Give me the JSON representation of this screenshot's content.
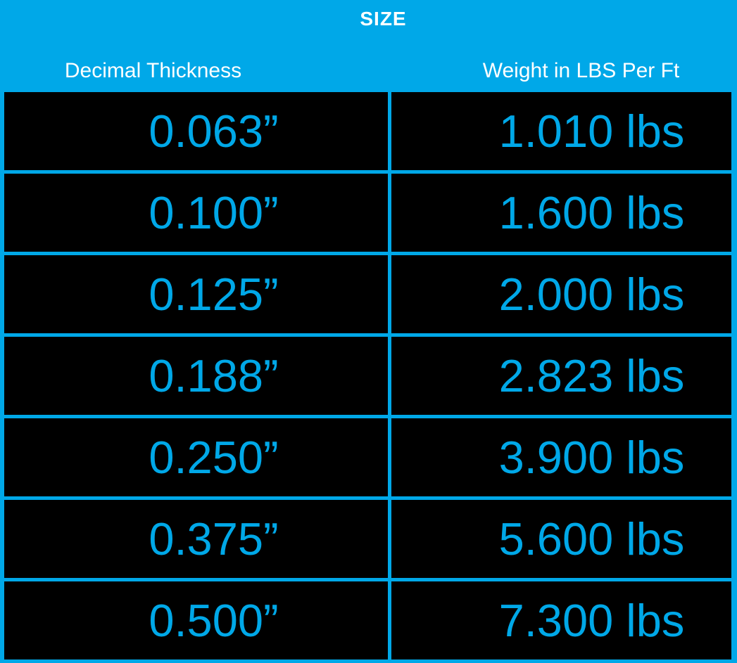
{
  "title": "SIZE",
  "columns": {
    "thickness_label": "Decimal Thickness",
    "weight_label": "Weight in LBS Per Ft"
  },
  "table": {
    "rows": [
      {
        "thickness": "0.063”",
        "weight": "1.010 lbs"
      },
      {
        "thickness": "0.100”",
        "weight": "1.600 lbs"
      },
      {
        "thickness": "0.125”",
        "weight": "2.000 lbs"
      },
      {
        "thickness": "0.188”",
        "weight": "2.823 lbs"
      },
      {
        "thickness": "0.250”",
        "weight": "3.900 lbs"
      },
      {
        "thickness": "0.375”",
        "weight": "5.600 lbs"
      },
      {
        "thickness": "0.500”",
        "weight": "7.300 lbs"
      }
    ]
  },
  "chart_data": {
    "type": "table",
    "title": "SIZE",
    "columns": [
      "Decimal Thickness",
      "Weight in LBS Per Ft"
    ],
    "rows": [
      [
        "0.063”",
        "1.010 lbs"
      ],
      [
        "0.100”",
        "1.600 lbs"
      ],
      [
        "0.125”",
        "2.000 lbs"
      ],
      [
        "0.188”",
        "2.823 lbs"
      ],
      [
        "0.250”",
        "3.900 lbs"
      ],
      [
        "0.375”",
        "5.600 lbs"
      ],
      [
        "0.500”",
        "7.300 lbs"
      ]
    ],
    "thickness_inches": [
      0.063,
      0.1,
      0.125,
      0.188,
      0.25,
      0.375,
      0.5
    ],
    "weight_lbs_per_ft": [
      1.01,
      1.6,
      2.0,
      2.823,
      3.9,
      5.6,
      7.3
    ]
  },
  "colors": {
    "accent": "#00a8e8",
    "cell_bg": "#000000",
    "header_text": "#ffffff",
    "cell_text": "#00a8e8",
    "page_bg": "#ffffff"
  }
}
